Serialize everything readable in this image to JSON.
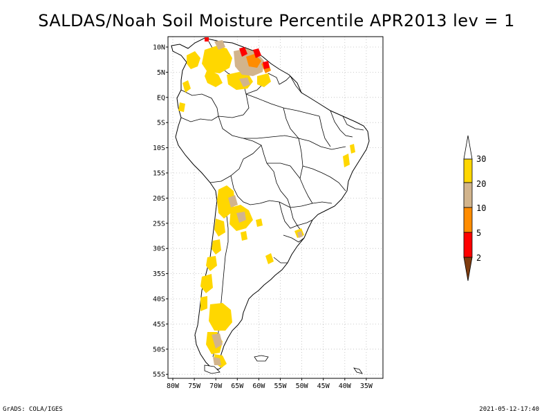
{
  "title": "SALDAS/Noah Soil Moisture Percentile APR2013 lev = 1",
  "footer": {
    "left": "GrADS: COLA/IGES",
    "right": "2021-05-12-17:40"
  },
  "axes": {
    "lat_labels": [
      "10N",
      "5N",
      "EQ",
      "5S",
      "10S",
      "15S",
      "20S",
      "25S",
      "30S",
      "35S",
      "40S",
      "45S",
      "50S",
      "55S"
    ],
    "lon_labels": [
      "80W",
      "75W",
      "70W",
      "65W",
      "60W",
      "55W",
      "50W",
      "45W",
      "40W",
      "35W"
    ]
  },
  "colorbar": {
    "labels": [
      "30",
      "20",
      "10",
      "5",
      "2"
    ],
    "colors": {
      "above": "#ffffff",
      "yellow": "#ffd700",
      "tan": "#d2b48c",
      "orange": "#ff8c00",
      "red": "#ff0000",
      "brown": "#7f3c0f"
    }
  }
}
